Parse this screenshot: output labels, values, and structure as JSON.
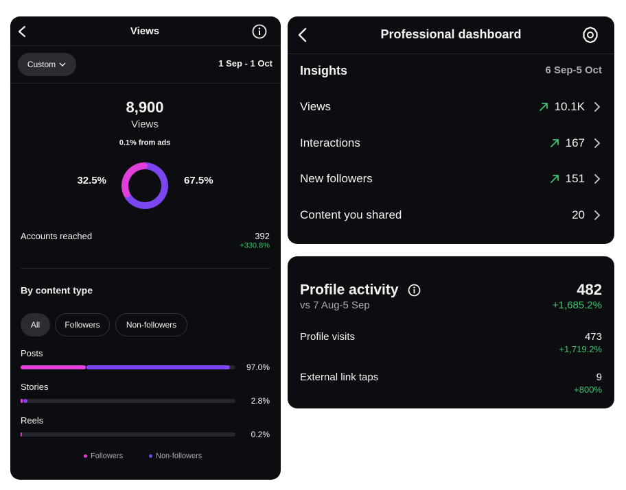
{
  "views_panel": {
    "header": {
      "title": "Views"
    },
    "filter": "Custom",
    "date_range": "1 Sep - 1 Oct",
    "total": "8,900",
    "total_label": "Views",
    "ads_note": "0.1% from ads",
    "donut": {
      "type": "pie",
      "names": [
        "Followers",
        "Non-followers"
      ],
      "values": [
        32.5,
        67.5
      ],
      "value_labels": [
        "32.5%",
        "67.5%"
      ],
      "colors": [
        "#e040d9",
        "#7b45f0"
      ]
    },
    "accounts_reached": {
      "label": "Accounts reached",
      "value": "392",
      "change": "+330.8%"
    },
    "content_type": {
      "title": "By content type",
      "tabs": [
        "All",
        "Followers",
        "Non-followers"
      ],
      "xlim": [
        0,
        100
      ],
      "rows": [
        {
          "label": "Posts",
          "percent": "97.0%",
          "values": [
            30.5,
            66.5
          ]
        },
        {
          "label": "Stories",
          "percent": "2.8%",
          "values": [
            1.0,
            1.8
          ]
        },
        {
          "label": "Reels",
          "percent": "0.2%",
          "values": [
            0.05,
            0.15
          ]
        }
      ]
    }
  },
  "dashboard_panel": {
    "header": {
      "title": "Professional dashboard"
    },
    "insights_title": "Insights",
    "date_range": "6 Sep-5 Oct",
    "rows": [
      {
        "label": "Views",
        "value": "10.1K",
        "trend_up": true
      },
      {
        "label": "Interactions",
        "value": "167",
        "trend_up": true
      },
      {
        "label": "New followers",
        "value": "151",
        "trend_up": true
      },
      {
        "label": "Content you shared",
        "value": "20",
        "trend_up": false
      }
    ]
  },
  "profile_panel": {
    "title": "Profile activity",
    "subtitle": "vs 7 Aug-5 Sep",
    "total": "482",
    "change": "+1,685.2%",
    "rows": [
      {
        "label": "Profile visits",
        "value": "473",
        "change": "+1,719.2%"
      },
      {
        "label": "External link taps",
        "value": "9",
        "change": "+800%"
      }
    ]
  }
}
